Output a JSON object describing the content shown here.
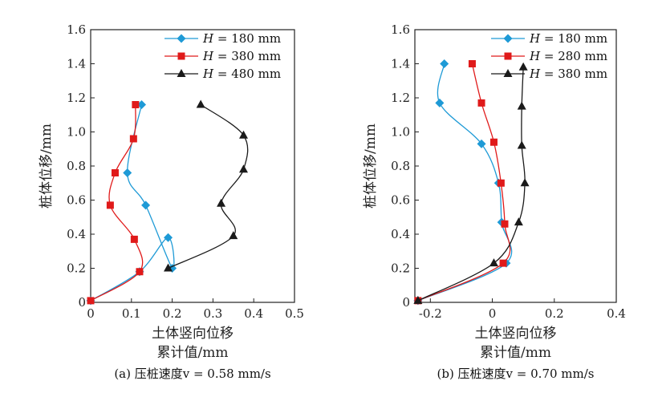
{
  "chart_data": [
    {
      "type": "line",
      "caption": "(a) 压桩速度v = 0.58 mm/s",
      "ylabel": "桩体位移/mm",
      "xlabel_line1": "土体竖向位移",
      "xlabel_line2": "累计值/mm",
      "xlim": [
        0,
        0.5
      ],
      "ylim": [
        0,
        1.6
      ],
      "xticks": [
        "0",
        "0.1",
        "0.2",
        "0.3",
        "0.4",
        "0.5"
      ],
      "yticks": [
        "0",
        "0.2",
        "0.4",
        "0.6",
        "0.8",
        "1.0",
        "1.2",
        "1.4",
        "1.6"
      ],
      "legend_position": "top-right",
      "series": [
        {
          "name": "H = 180 mm",
          "legend_var": "H",
          "legend_value": "= 180 mm",
          "color": "#1e9ad6",
          "marker": "diamond",
          "x": [
            0.0,
            0.12,
            0.19,
            0.2,
            0.135,
            0.09,
            0.125
          ],
          "y": [
            0.01,
            0.18,
            0.38,
            0.2,
            0.57,
            0.76,
            1.16
          ]
        },
        {
          "name": "H = 380 mm",
          "legend_var": "H",
          "legend_value": "= 380 mm",
          "color": "#e01a1a",
          "marker": "square",
          "x": [
            0.0,
            0.12,
            0.107,
            0.048,
            0.06,
            0.105,
            0.11
          ],
          "y": [
            0.01,
            0.18,
            0.37,
            0.57,
            0.76,
            0.96,
            1.16
          ]
        },
        {
          "name": "H = 480 mm",
          "legend_var": "H",
          "legend_value": "= 480 mm",
          "color": "#1a1a1a",
          "marker": "triangle",
          "x": [
            0.19,
            0.35,
            0.32,
            0.375,
            0.375,
            0.27
          ],
          "y": [
            0.2,
            0.39,
            0.58,
            0.78,
            0.98,
            1.16
          ]
        }
      ]
    },
    {
      "type": "line",
      "caption": "(b) 压桩速度v = 0.70 mm/s",
      "ylabel": "桩体位移/mm",
      "xlabel_line1": "土体竖向位移",
      "xlabel_line2": "累计值/mm",
      "xlim": [
        -0.25,
        0.4
      ],
      "ylim": [
        0,
        1.6
      ],
      "xticks": [
        "-0.2",
        "0",
        "0.2",
        "0.4"
      ],
      "xtick_values": [
        -0.2,
        0,
        0.2,
        0.4
      ],
      "yticks": [
        "0",
        "0.2",
        "0.4",
        "0.6",
        "0.8",
        "1.0",
        "1.2",
        "1.4",
        "1.6"
      ],
      "legend_position": "top-right",
      "series": [
        {
          "name": "H = 180 mm",
          "legend_var": "H",
          "legend_value": "= 180 mm",
          "color": "#1e9ad6",
          "marker": "diamond",
          "x": [
            -0.24,
            0.045,
            0.03,
            0.02,
            -0.035,
            -0.17,
            -0.155
          ],
          "y": [
            0.01,
            0.23,
            0.47,
            0.7,
            0.93,
            1.17,
            1.4
          ]
        },
        {
          "name": "H = 280 mm",
          "legend_var": "H",
          "legend_value": "= 280 mm",
          "color": "#e01a1a",
          "marker": "square",
          "x": [
            -0.24,
            0.035,
            0.04,
            0.028,
            0.005,
            -0.035,
            -0.065
          ],
          "y": [
            0.01,
            0.23,
            0.46,
            0.7,
            0.94,
            1.17,
            1.4
          ]
        },
        {
          "name": "H = 380 mm",
          "legend_var": "H",
          "legend_value": "= 380 mm",
          "color": "#1a1a1a",
          "marker": "triangle",
          "x": [
            -0.24,
            0.005,
            0.085,
            0.105,
            0.095,
            0.095,
            0.1
          ],
          "y": [
            0.01,
            0.23,
            0.47,
            0.7,
            0.92,
            1.15,
            1.38
          ]
        }
      ]
    }
  ]
}
